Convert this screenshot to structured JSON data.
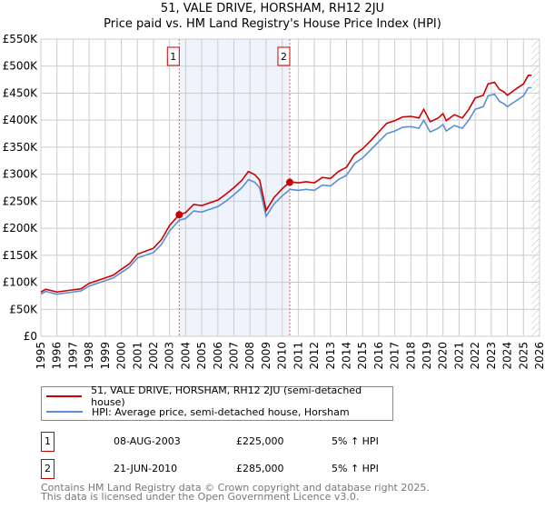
{
  "chart_data": {
    "type": "line",
    "title": "51, VALE DRIVE, HORSHAM, RH12 2JU",
    "subtitle": "Price paid vs. HM Land Registry's House Price Index (HPI)",
    "xlim": [
      1995,
      2026
    ],
    "ylim": [
      0,
      550000
    ],
    "y_ticks": [
      {
        "v": 0,
        "label": "£0"
      },
      {
        "v": 50000,
        "label": "£50K"
      },
      {
        "v": 100000,
        "label": "£100K"
      },
      {
        "v": 150000,
        "label": "£150K"
      },
      {
        "v": 200000,
        "label": "£200K"
      },
      {
        "v": 250000,
        "label": "£250K"
      },
      {
        "v": 300000,
        "label": "£300K"
      },
      {
        "v": 350000,
        "label": "£350K"
      },
      {
        "v": 400000,
        "label": "£400K"
      },
      {
        "v": 450000,
        "label": "£450K"
      },
      {
        "v": 500000,
        "label": "£500K"
      },
      {
        "v": 550000,
        "label": "£550K"
      }
    ],
    "x_ticks": [
      "1995",
      "1996",
      "1997",
      "1998",
      "1999",
      "2000",
      "2001",
      "2002",
      "2003",
      "2004",
      "2005",
      "2006",
      "2007",
      "2008",
      "2009",
      "2010",
      "2011",
      "2012",
      "2013",
      "2014",
      "2015",
      "2016",
      "2017",
      "2018",
      "2019",
      "2020",
      "2021",
      "2022",
      "2023",
      "2024",
      "2025",
      "2026"
    ],
    "grid": true,
    "shaded_range": [
      2003.6,
      2010.47
    ],
    "hatched_from": 2025.5,
    "x": [
      1995,
      1995.3,
      1996,
      1997,
      1997.5,
      1998,
      1999,
      1999.5,
      2000,
      2000.5,
      2001,
      2002,
      2002.5,
      2003,
      2003.6,
      2004,
      2004.5,
      2005,
      2005.5,
      2006,
      2006.5,
      2007,
      2007.5,
      2007.9,
      2008.3,
      2008.6,
      2009,
      2009.5,
      2010,
      2010.5,
      2011,
      2011.5,
      2012,
      2012.5,
      2013,
      2013.5,
      2014,
      2014.5,
      2015,
      2015.5,
      2016,
      2016.5,
      2017,
      2017.5,
      2018,
      2018.5,
      2018.8,
      2019.2,
      2019.7,
      2020,
      2020.2,
      2020.7,
      2021.2,
      2021.6,
      2022,
      2022.5,
      2022.8,
      2023.2,
      2023.5,
      2023.8,
      2024,
      2024.5,
      2025,
      2025.3,
      2025.5
    ],
    "series": [
      {
        "name": "51, VALE DRIVE, HORSHAM, RH12 2JU (semi-detached house)",
        "color": "#cc0000",
        "values": [
          82,
          87,
          82,
          86,
          88,
          98,
          108,
          113,
          124,
          134,
          152,
          163,
          179,
          205,
          225,
          229,
          244,
          242,
          247,
          252,
          263,
          275,
          289,
          305,
          299,
          289,
          233,
          257,
          273,
          286,
          284,
          286,
          284,
          294,
          292,
          305,
          313,
          336,
          347,
          362,
          378,
          394,
          399,
          406,
          407,
          404,
          420,
          397,
          404,
          412,
          399,
          410,
          404,
          420,
          441,
          446,
          467,
          470,
          457,
          452,
          446,
          457,
          467,
          483,
          483
        ]
      },
      {
        "name": "HPI: Average price, semi-detached house, Horsham",
        "color": "#5b8fd4",
        "values": [
          78,
          83,
          78,
          82,
          84,
          93,
          103,
          108,
          118,
          128,
          145,
          155,
          170,
          195,
          215,
          218,
          232,
          230,
          235,
          240,
          250,
          262,
          275,
          290,
          285,
          275,
          222,
          245,
          260,
          272,
          270,
          272,
          270,
          280,
          278,
          290,
          298,
          320,
          330,
          345,
          360,
          375,
          380,
          387,
          388,
          385,
          400,
          378,
          385,
          392,
          380,
          390,
          385,
          400,
          420,
          425,
          445,
          448,
          435,
          430,
          425,
          435,
          445,
          460,
          460
        ]
      }
    ],
    "value_unit": "thousand GBP",
    "sales": [
      {
        "label": "1",
        "x": 2003.6,
        "value": 225000
      },
      {
        "label": "2",
        "x": 2010.47,
        "value": 285000
      }
    ],
    "legend_placement": "below"
  },
  "table": [
    {
      "num": "1",
      "date": "08-AUG-2003",
      "price": "£225,000",
      "hpi": "5% ↑ HPI"
    },
    {
      "num": "2",
      "date": "21-JUN-2010",
      "price": "£285,000",
      "hpi": "5% ↑ HPI"
    }
  ],
  "footer": {
    "line1": "Contains HM Land Registry data © Crown copyright and database right 2025.",
    "line2": "This data is licensed under the Open Government Licence v3.0."
  }
}
